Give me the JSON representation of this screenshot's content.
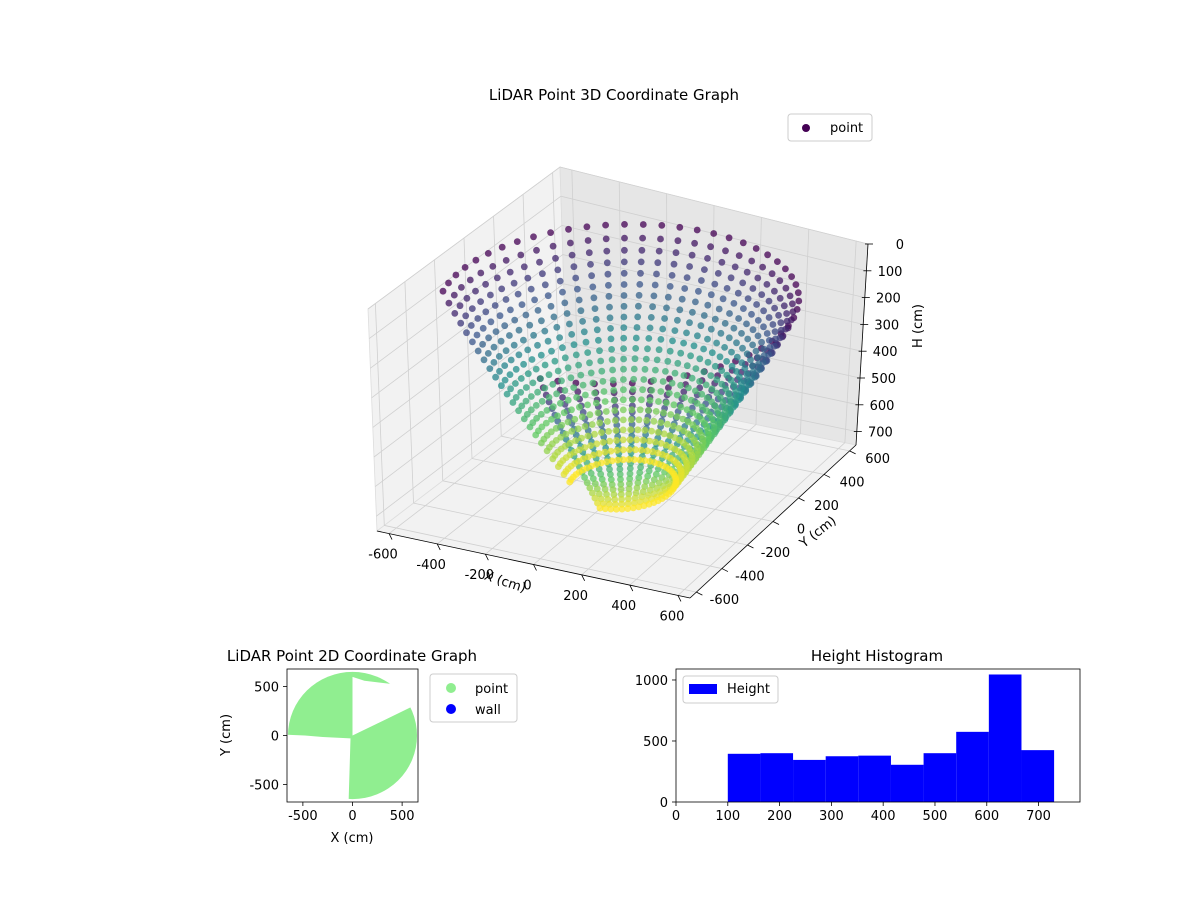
{
  "chart_data": [
    {
      "type": "scatter",
      "projection": "3d",
      "title": "LiDAR Point 3D Coordinate Graph",
      "xlabel": "X (cm)",
      "ylabel": "Y (cm)",
      "zlabel": "H (cm)",
      "xticks": [
        -600,
        -400,
        -200,
        0,
        200,
        400,
        600
      ],
      "yticks": [
        -600,
        -400,
        -200,
        0,
        200,
        400,
        600
      ],
      "zticks": [
        0,
        100,
        200,
        300,
        400,
        500,
        600,
        700
      ],
      "xlim": [
        -650,
        650
      ],
      "ylim": [
        -650,
        650
      ],
      "zlim": [
        0,
        750
      ],
      "z_inverted": true,
      "colormap": "viridis",
      "grid": true,
      "legend": {
        "placement": "top-right",
        "entries": [
          {
            "label": "point",
            "color": "#440154"
          }
        ]
      },
      "series": [
        {
          "name": "point",
          "shape": "bowl of points around the sensor; height increases toward the center",
          "radius_range": [
            200,
            650
          ],
          "height_range": [
            100,
            730
          ]
        }
      ]
    },
    {
      "type": "scatter",
      "title": "LiDAR Point 2D Coordinate Graph",
      "xlabel": "X (cm)",
      "ylabel": "Y (cm)",
      "xticks": [
        -500,
        0,
        500
      ],
      "yticks": [
        500,
        0,
        -500
      ],
      "xlim": [
        -660,
        660
      ],
      "ylim": [
        -680,
        680
      ],
      "legend": {
        "placement": "outside-right",
        "entries": [
          {
            "label": "point",
            "color": "#90ee90"
          },
          {
            "label": "wall",
            "color": "#0000ff"
          }
        ]
      },
      "series": [
        {
          "name": "point",
          "color": "#90ee90",
          "region": "disc of radius ~650 cm with gaps in the upper-right and lower-left quadrants"
        },
        {
          "name": "wall",
          "color": "#0000ff",
          "points": []
        }
      ]
    },
    {
      "type": "bar",
      "subtype": "histogram",
      "title": "Height Histogram",
      "xticks": [
        0,
        100,
        200,
        300,
        400,
        500,
        600,
        700
      ],
      "yticks": [
        0,
        500,
        1000
      ],
      "xlim": [
        0,
        780
      ],
      "ylim": [
        0,
        1090
      ],
      "color": "#0000ff",
      "legend": {
        "placement": "top-left",
        "entries": [
          {
            "label": "Height",
            "color": "#0000ff"
          }
        ]
      },
      "bin_edges": [
        100,
        163,
        226,
        289,
        352,
        415,
        478,
        541,
        604,
        667,
        730
      ],
      "values": [
        395,
        400,
        345,
        375,
        380,
        305,
        400,
        575,
        1045,
        425
      ]
    }
  ]
}
